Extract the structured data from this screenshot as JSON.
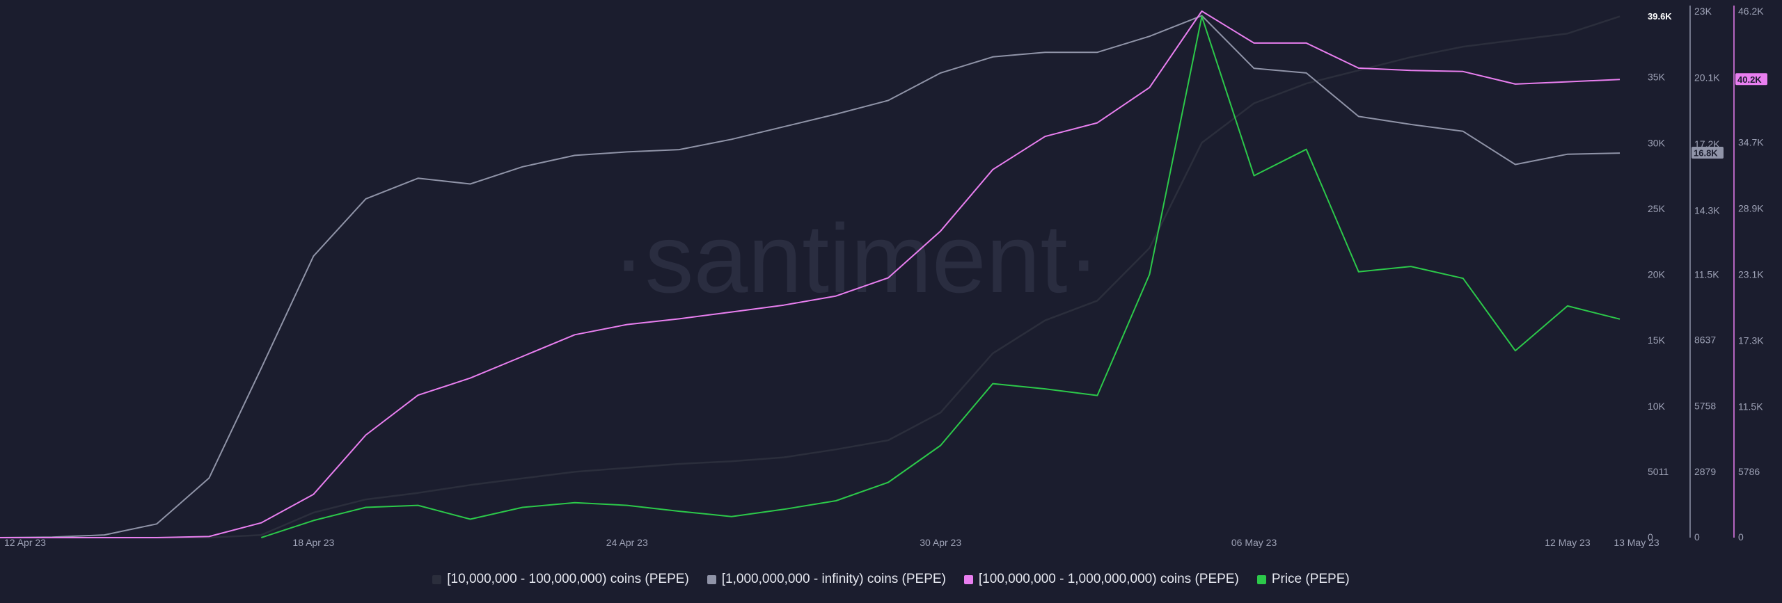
{
  "chart_data": {
    "type": "line",
    "watermark": "·santiment·",
    "x": [
      "12 Apr 23",
      "13 Apr 23",
      "14 Apr 23",
      "15 Apr 23",
      "16 Apr 23",
      "17 Apr 23",
      "18 Apr 23",
      "19 Apr 23",
      "20 Apr 23",
      "21 Apr 23",
      "22 Apr 23",
      "23 Apr 23",
      "24 Apr 23",
      "25 Apr 23",
      "26 Apr 23",
      "27 Apr 23",
      "28 Apr 23",
      "29 Apr 23",
      "30 Apr 23",
      "01 May 23",
      "02 May 23",
      "03 May 23",
      "04 May 23",
      "05 May 23",
      "06 May 23",
      "07 May 23",
      "08 May 23",
      "09 May 23",
      "10 May 23",
      "11 May 23",
      "12 May 23",
      "13 May 23"
    ],
    "x_ticks": [
      {
        "index": 0,
        "label": "12 Apr 23"
      },
      {
        "index": 6,
        "label": "18 Apr 23"
      },
      {
        "index": 12,
        "label": "24 Apr 23"
      },
      {
        "index": 18,
        "label": "30 Apr 23"
      },
      {
        "index": 24,
        "label": "06 May 23"
      },
      {
        "index": 30,
        "label": "12 May 23"
      },
      {
        "index": 31,
        "label": "13 May 23"
      }
    ],
    "axes": [
      {
        "id": "axis1",
        "ylim": [
          0,
          40000
        ],
        "ticks": [
          {
            "value": 0,
            "label": "0"
          },
          {
            "value": 5011,
            "label": "5011"
          },
          {
            "value": 10000,
            "label": "10K"
          },
          {
            "value": 15000,
            "label": "15K"
          },
          {
            "value": 20000,
            "label": "20K"
          },
          {
            "value": 25000,
            "label": "25K"
          },
          {
            "value": 30000,
            "label": "30K"
          },
          {
            "value": 35000,
            "label": "35K"
          }
        ]
      },
      {
        "id": "axis2",
        "ylim": [
          0,
          23000
        ],
        "ticks": [
          {
            "value": 0,
            "label": "0"
          },
          {
            "value": 2879,
            "label": "2879"
          },
          {
            "value": 5758,
            "label": "5758"
          },
          {
            "value": 8637,
            "label": "8637"
          },
          {
            "value": 11500,
            "label": "11.5K"
          },
          {
            "value": 14300,
            "label": "14.3K"
          },
          {
            "value": 17200,
            "label": "17.2K"
          },
          {
            "value": 20100,
            "label": "20.1K"
          },
          {
            "value": 23000,
            "label": "23K"
          }
        ]
      },
      {
        "id": "axis3",
        "ylim": [
          0,
          46200
        ],
        "ticks": [
          {
            "value": 0,
            "label": "0"
          },
          {
            "value": 5786,
            "label": "5786"
          },
          {
            "value": 11500,
            "label": "11.5K"
          },
          {
            "value": 17300,
            "label": "17.3K"
          },
          {
            "value": 23100,
            "label": "23.1K"
          },
          {
            "value": 28900,
            "label": "28.9K"
          },
          {
            "value": 34700,
            "label": "34.7K"
          },
          {
            "value": 40200,
            "label": "40.2K"
          },
          {
            "value": 46200,
            "label": "46.2K"
          }
        ]
      }
    ],
    "series": [
      {
        "name": "[10,000,000 - 100,000,000) coins (PEPE)",
        "color": "#2b2e3c",
        "axis": "axis1",
        "last_value_label": "39.6K",
        "values": [
          0,
          0,
          0,
          0,
          0,
          200,
          1900,
          2900,
          3400,
          4000,
          4500,
          5000,
          5300,
          5600,
          5800,
          6100,
          6700,
          7400,
          9500,
          14000,
          16500,
          18000,
          22000,
          30000,
          33000,
          34500,
          35500,
          36500,
          37300,
          37800,
          38300,
          39600
        ]
      },
      {
        "name": "[1,000,000,000 - infinity) coins (PEPE)",
        "color": "#9094a8",
        "axis": "axis2",
        "last_value_label": "16.8K",
        "values": [
          0,
          20,
          120,
          600,
          2600,
          7400,
          12300,
          14800,
          15700,
          15450,
          16200,
          16700,
          16850,
          16950,
          17400,
          17950,
          18500,
          19100,
          20300,
          21000,
          21200,
          21200,
          21900,
          22800,
          20500,
          20300,
          18400,
          18050,
          17750,
          16300,
          16750,
          16800
        ]
      },
      {
        "name": "[100,000,000 - 1,000,000,000) coins (PEPE)",
        "color": "#e97ff0",
        "axis": "axis3",
        "last_value_label": "40.2K",
        "values": [
          0,
          0,
          0,
          0,
          100,
          1300,
          3800,
          9000,
          12500,
          14000,
          15900,
          17800,
          18700,
          19200,
          19800,
          20400,
          21200,
          22800,
          26900,
          32300,
          35200,
          36400,
          39500,
          46200,
          43400,
          43400,
          41200,
          41000,
          40900,
          39800,
          40000,
          40200
        ]
      },
      {
        "name": "Price (PEPE)",
        "color": "#2cc94a",
        "axis": "axis1",
        "values": [
          null,
          null,
          null,
          null,
          null,
          0,
          1300,
          2300,
          2450,
          1400,
          2300,
          2650,
          2450,
          2000,
          1600,
          2150,
          2800,
          4200,
          7000,
          11700,
          11300,
          10800,
          20000,
          39600,
          27500,
          29500,
          20200,
          20600,
          19700,
          14200,
          17600,
          16600
        ]
      }
    ],
    "legend_position": "bottom-center"
  }
}
